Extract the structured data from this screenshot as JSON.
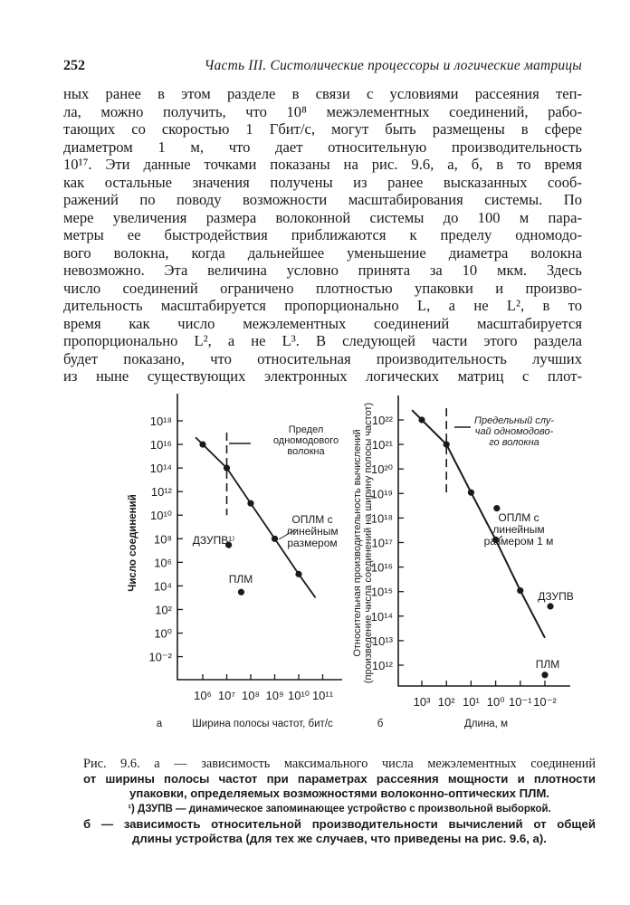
{
  "header": {
    "page_number": "252",
    "running_title": "Часть III. Систолические процессоры и логические матрицы"
  },
  "body_lines": [
    "ных ранее в этом разделе в связи с условиями рассеяния теп-",
    "ла, можно получить, что 10⁸ межэлементных соединений, рабо-",
    "тающих со скоростью 1 Гбит/с, могут быть размещены в сфере",
    "диаметром 1 м, что дает относительную производительность",
    "10¹⁷. Эти данные точками показаны на рис. 9.6, а, б, в то время",
    "как остальные значения получены из ранее высказанных сооб-",
    "ражений по поводу возможности масштабирования системы. По",
    "мере увеличения размера волоконной системы до 100 м пара-",
    "метры ее быстродействия приближаются к пределу одномодо-",
    "вого волокна, когда дальнейшее уменьшение диаметра волокна",
    "невозможно. Эта величина условно принята за 10 мкм. Здесь",
    "число соединений ограничено плотностью упаковки и произво-",
    "дительность масштабируется пропорционально L, а не L², в то",
    "время как число межэлементных соединений масштабируется",
    "пропорционально L², а не L³. В следующей части этого раздела",
    "будет показано, что относительная производительность лучших",
    "из ныне существующих электронных логических матриц с плот-"
  ],
  "chart_data": [
    {
      "type": "scatter",
      "panel_label": "а",
      "xlabel": "Ширина полосы частот, бит/с",
      "ylabel": "Число соединений",
      "x_scale": "log",
      "y_scale": "log",
      "xlim": [
        100000.0,
        1000000000000.0
      ],
      "ylim": [
        0.001,
        1e+20
      ],
      "x_ticks": [
        "10⁶",
        "10⁷",
        "10⁸",
        "10⁹",
        "10¹⁰",
        "10¹¹"
      ],
      "x_tick_values": [
        1000000.0,
        10000000.0,
        100000000.0,
        1000000000.0,
        10000000000.0,
        100000000000.0
      ],
      "y_ticks": [
        "10¹⁸",
        "10¹⁶",
        "10¹⁴",
        "10¹²",
        "10¹⁰",
        "10⁸",
        "10⁶",
        "10⁴",
        "10²",
        "10⁰",
        "10⁻²"
      ],
      "y_tick_values": [
        1e+18,
        1e+16,
        100000000000000.0,
        1000000000000.0,
        10000000000.0,
        100000000.0,
        1000000.0,
        10000.0,
        100.0,
        1,
        0.01
      ],
      "grid": false,
      "series": [
        {
          "name": "ОПЛМ с линейным размером",
          "label_lines": [
            "ОПЛМ с",
            "линейным",
            "размером"
          ],
          "line": true,
          "x": [
            1000000.0,
            10000000.0,
            100000000.0,
            1000000000.0,
            10000000000.0
          ],
          "y": [
            1e+16,
            100000000000000.0,
            100000000000.0,
            100000000.0,
            100000.0
          ],
          "line_x": [
            500000.0,
            1000000.0,
            10000000.0,
            100000000.0,
            1000000000.0,
            10000000000.0,
            50000000000.0
          ],
          "line_y": [
            4e+16,
            1e+16,
            100000000000000.0,
            100000000000.0,
            100000000.0,
            100000.0,
            1000.0
          ]
        },
        {
          "name": "ДЗУПВ¹⁾",
          "x": [
            12000000.0
          ],
          "y": [
            30000000.0
          ]
        },
        {
          "name": "ПЛМ",
          "x": [
            40000000.0
          ],
          "y": [
            3000.0
          ]
        }
      ],
      "reference_line": {
        "label_lines": [
          "Предел",
          "одномодового",
          "волокна"
        ],
        "x": 10000000.0,
        "y_range": [
          10000000000.0,
          1e+17
        ],
        "style": "dashed"
      }
    },
    {
      "type": "scatter",
      "panel_label": "б",
      "xlabel": "Длина, м",
      "ylabel_lines": [
        "Относительная производительность  вычислений",
        "(произведение числа соединений на ширину полосы частот)"
      ],
      "x_scale": "log (reversed)",
      "y_scale": "log",
      "xlim": [
        10000.0,
        0.003
      ],
      "ylim": [
        100000000000.0,
        1e+23
      ],
      "x_ticks": [
        "10³",
        "10²",
        "10¹",
        "10⁰",
        "10⁻¹",
        "10⁻²"
      ],
      "x_tick_values": [
        1000.0,
        100.0,
        10.0,
        1,
        0.1,
        0.01
      ],
      "y_ticks": [
        "10²²",
        "10²¹",
        "10²⁰",
        "10¹⁹",
        "10¹⁸",
        "10¹⁷",
        "10¹⁶",
        "10¹⁵",
        "10¹⁴",
        "10¹³",
        "10¹²"
      ],
      "y_tick_values": [
        1e+22,
        1e+21,
        1e+20,
        1e+19,
        1e+18,
        1e+17,
        1e+16,
        1000000000000000.0,
        100000000000000.0,
        10000000000000.0,
        1000000000000.0
      ],
      "grid": false,
      "series": [
        {
          "name": "ОПЛМ с линейным размером 1 м",
          "label_lines": [
            "ОПЛМ с",
            "линейным",
            "размером 1 м"
          ],
          "line": true,
          "x": [
            1000.0,
            100.0,
            10,
            1,
            0.1
          ],
          "y": [
            1e+22,
            1e+21,
            1.1e+19,
            1.3e+17,
            1100000000000000.0
          ],
          "line_x": [
            2500,
            1000.0,
            100.0,
            10,
            1,
            0.1,
            0.01
          ],
          "line_y": [
            2.5e+22,
            1e+22,
            1e+21,
            1.1e+19,
            1.3e+17,
            1100000000000000.0,
            13000000000000.0
          ]
        },
        {
          "name": "",
          "x": [
            0.9
          ],
          "y": [
            2.5e+18
          ]
        },
        {
          "name": "ДЗУПВ",
          "x": [
            0.006
          ],
          "y": [
            250000000000000.0
          ]
        },
        {
          "name": "ПЛМ",
          "x": [
            0.01
          ],
          "y": [
            400000000000.0
          ]
        }
      ],
      "reference_line": {
        "label_lines": [
          "Предельный слу-",
          "чай одномодово-",
          "го волокна"
        ],
        "x": 100.0,
        "y_range": [
          1e+19,
          3e+22
        ],
        "style": "dashed"
      }
    }
  ],
  "caption": {
    "line1": "Рис. 9.6. а — зависимость максимального числа межэлементных соединений",
    "line2": "от ширины полосы частот при параметрах рассеяния мощности и плотности",
    "line3": "упаковки, определяемых возможностями волоконно-оптических ПЛМ.",
    "footnote": "¹) ДЗУПВ — динамическое запоминающее устройство с произвольной выборкой.",
    "line5": "б — зависимость относительной производительности вычислений от общей",
    "line6": "длины устройства (для тех же случаев, что приведены на рис. 9.6, а)."
  }
}
